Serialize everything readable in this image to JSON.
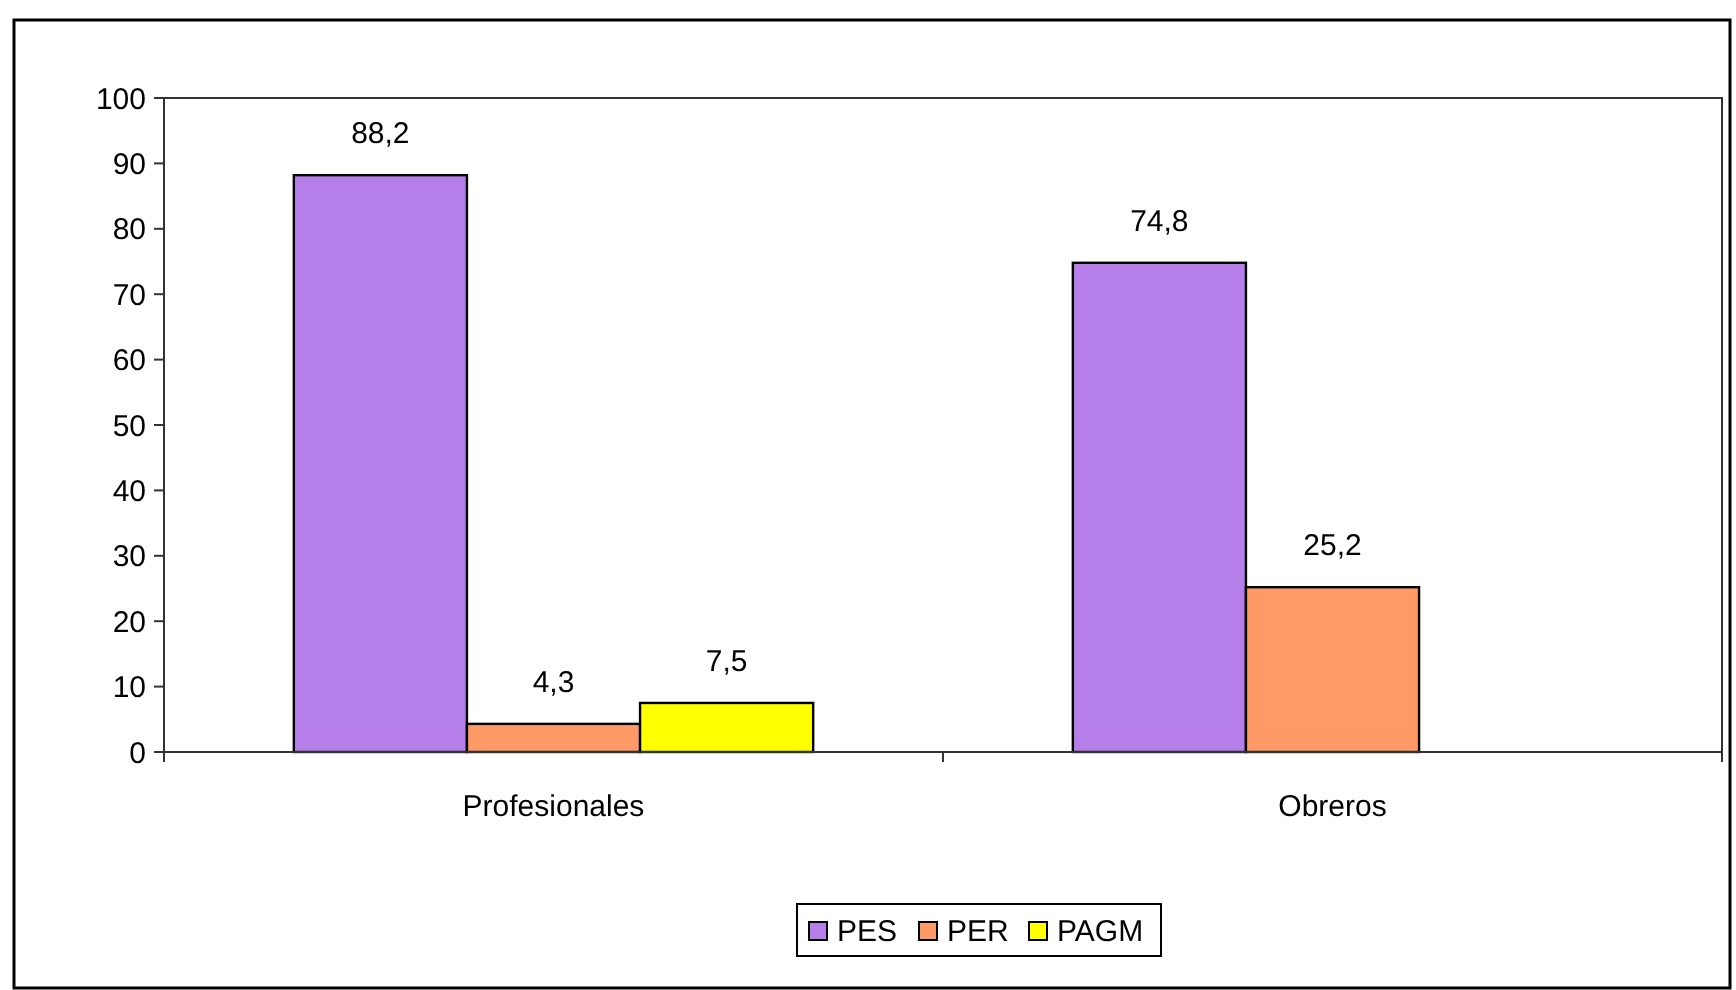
{
  "chart_data": {
    "type": "bar",
    "categories": [
      "Profesionales",
      "Obreros"
    ],
    "series": [
      {
        "name": "PES",
        "color": "#b57ee8",
        "values": [
          88.2,
          74.8
        ],
        "value_labels": [
          "88,2",
          "74,8"
        ]
      },
      {
        "name": "PER",
        "color": "#ff9966",
        "values": [
          4.3,
          25.2
        ],
        "value_labels": [
          "4,3",
          "25,2"
        ]
      },
      {
        "name": "PAGM",
        "color": "#ffff00",
        "values": [
          7.5,
          null
        ],
        "value_labels": [
          "7,5",
          null
        ]
      }
    ],
    "ylim": [
      0,
      100
    ],
    "yticks": [
      0,
      10,
      20,
      30,
      40,
      50,
      60,
      70,
      80,
      90,
      100
    ],
    "grid": false,
    "legend": "bottom"
  }
}
